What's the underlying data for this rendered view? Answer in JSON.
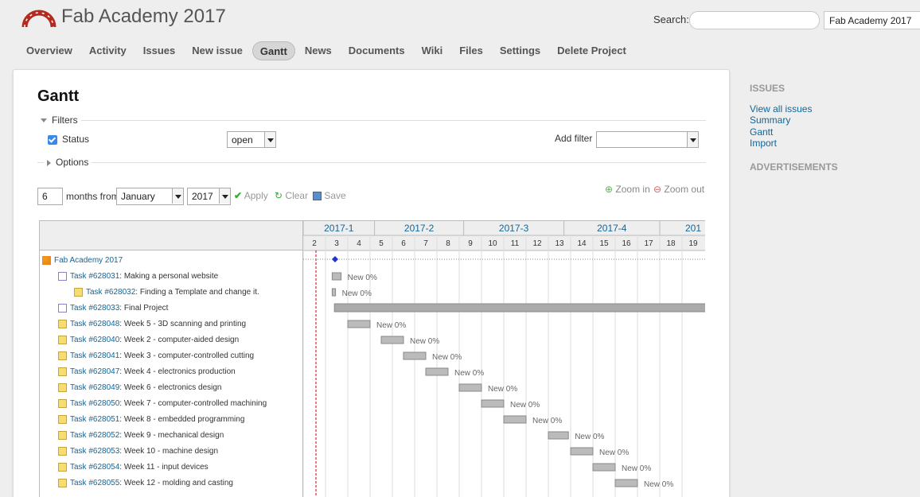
{
  "app": {
    "title": "Fab Academy 2017"
  },
  "search": {
    "label": "Search:",
    "value": "",
    "project_jump": "Fab Academy 2017"
  },
  "menu": [
    {
      "label": "Overview"
    },
    {
      "label": "Activity"
    },
    {
      "label": "Issues"
    },
    {
      "label": "New issue"
    },
    {
      "label": "Gantt",
      "selected": true
    },
    {
      "label": "News"
    },
    {
      "label": "Documents"
    },
    {
      "label": "Wiki"
    },
    {
      "label": "Files"
    },
    {
      "label": "Settings"
    },
    {
      "label": "Delete Project"
    }
  ],
  "page": {
    "title": "Gantt",
    "filters_label": "Filters",
    "status_label": "Status",
    "status_value": "open",
    "add_filter_label": "Add filter",
    "add_filter_value": "",
    "options_label": "Options",
    "months_value": "6",
    "months_from_label": "months from",
    "month_value": "January",
    "year_value": "2017",
    "apply_label": "Apply",
    "clear_label": "Clear",
    "save_label": "Save",
    "zoom_in_label": "Zoom in",
    "zoom_out_label": "Zoom out"
  },
  "sidebar": {
    "issues_heading": "ISSUES",
    "links": [
      "View all issues",
      "Summary",
      "Gantt",
      "Import"
    ],
    "ads_heading": "ADVERTISEMENTS"
  },
  "gantt": {
    "months": [
      "2017-1",
      "2017-2",
      "2017-3",
      "2017-4",
      "201"
    ],
    "weeks": [
      "2",
      "3",
      "4",
      "5",
      "6",
      "7",
      "8",
      "9",
      "10",
      "11",
      "12",
      "13",
      "14",
      "15",
      "16",
      "17",
      "18",
      "19"
    ],
    "rows": [
      {
        "type": "project",
        "indent": 0,
        "link": "Fab Academy 2017",
        "rest": ""
      },
      {
        "type": "tracker",
        "indent": 1,
        "link": "Task #628031",
        "rest": ": Making a personal website",
        "status": "New 0%"
      },
      {
        "type": "task",
        "indent": 2,
        "link": "Task #628032",
        "rest": ": Finding a Template and change it.",
        "status": "New 0%"
      },
      {
        "type": "tracker",
        "indent": 1,
        "link": "Task #628033",
        "rest": ": Final Project",
        "status": ""
      },
      {
        "type": "task",
        "indent": 1,
        "link": "Task #628048",
        "rest": ": Week 5 - 3D scanning and printing",
        "status": "New 0%"
      },
      {
        "type": "task",
        "indent": 1,
        "link": "Task #628040",
        "rest": ": Week 2 - computer-aided design",
        "status": "New 0%"
      },
      {
        "type": "task",
        "indent": 1,
        "link": "Task #628041",
        "rest": ": Week 3 - computer-controlled cutting",
        "status": "New 0%"
      },
      {
        "type": "task",
        "indent": 1,
        "link": "Task #628047",
        "rest": ": Week 4 - electronics production",
        "status": "New 0%"
      },
      {
        "type": "task",
        "indent": 1,
        "link": "Task #628049",
        "rest": ": Week 6 - electronics design",
        "status": "New 0%"
      },
      {
        "type": "task",
        "indent": 1,
        "link": "Task #628050",
        "rest": ": Week 7 - computer-controlled machining",
        "status": "New 0%"
      },
      {
        "type": "task",
        "indent": 1,
        "link": "Task #628051",
        "rest": ": Week 8 - embedded programming",
        "status": "New 0%"
      },
      {
        "type": "task",
        "indent": 1,
        "link": "Task #628052",
        "rest": ": Week 9 - mechanical design",
        "status": "New 0%"
      },
      {
        "type": "task",
        "indent": 1,
        "link": "Task #628053",
        "rest": ": Week 10 - machine design",
        "status": "New 0%"
      },
      {
        "type": "task",
        "indent": 1,
        "link": "Task #628054",
        "rest": ": Week 11 - input devices",
        "status": "New 0%"
      },
      {
        "type": "task",
        "indent": 1,
        "link": "Task #628055",
        "rest": ": Week 12 - molding and casting",
        "status": "New 0%"
      }
    ]
  },
  "colors": {
    "link": "#116699",
    "bar": "#999999",
    "today": "#cc0000",
    "milestone": "#2233cc"
  }
}
